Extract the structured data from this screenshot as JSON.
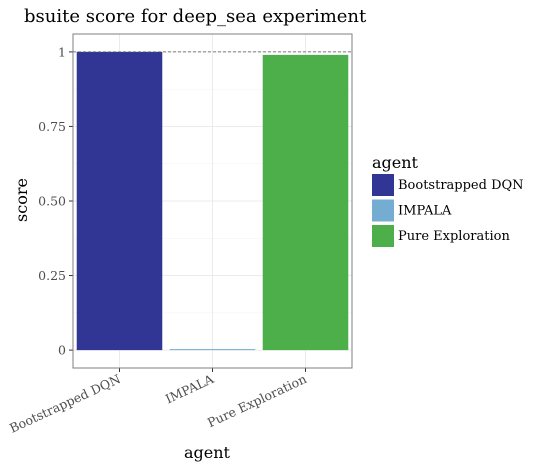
{
  "chart_data": {
    "type": "bar",
    "title": "bsuite score for deep_sea experiment",
    "xlabel": "agent",
    "ylabel": "score",
    "categories": [
      "Bootstrapped DQN",
      "IMPALA",
      "Pure Exploration"
    ],
    "values": [
      1.0,
      0.0,
      0.99
    ],
    "colors": [
      "#313695",
      "#74add1",
      "#4daf4a"
    ],
    "ylim": [
      -0.06,
      1.06
    ],
    "yticks": [
      0,
      0.25,
      0.5,
      0.75,
      1
    ],
    "ytick_labels": [
      "0",
      "0.25",
      "0.50",
      "0.75",
      "1"
    ],
    "reference_line": 1,
    "grid": true,
    "legend": {
      "title": "agent",
      "placement": "right",
      "entries": [
        "Bootstrapped DQN",
        "IMPALA",
        "Pure Exploration"
      ]
    }
  }
}
